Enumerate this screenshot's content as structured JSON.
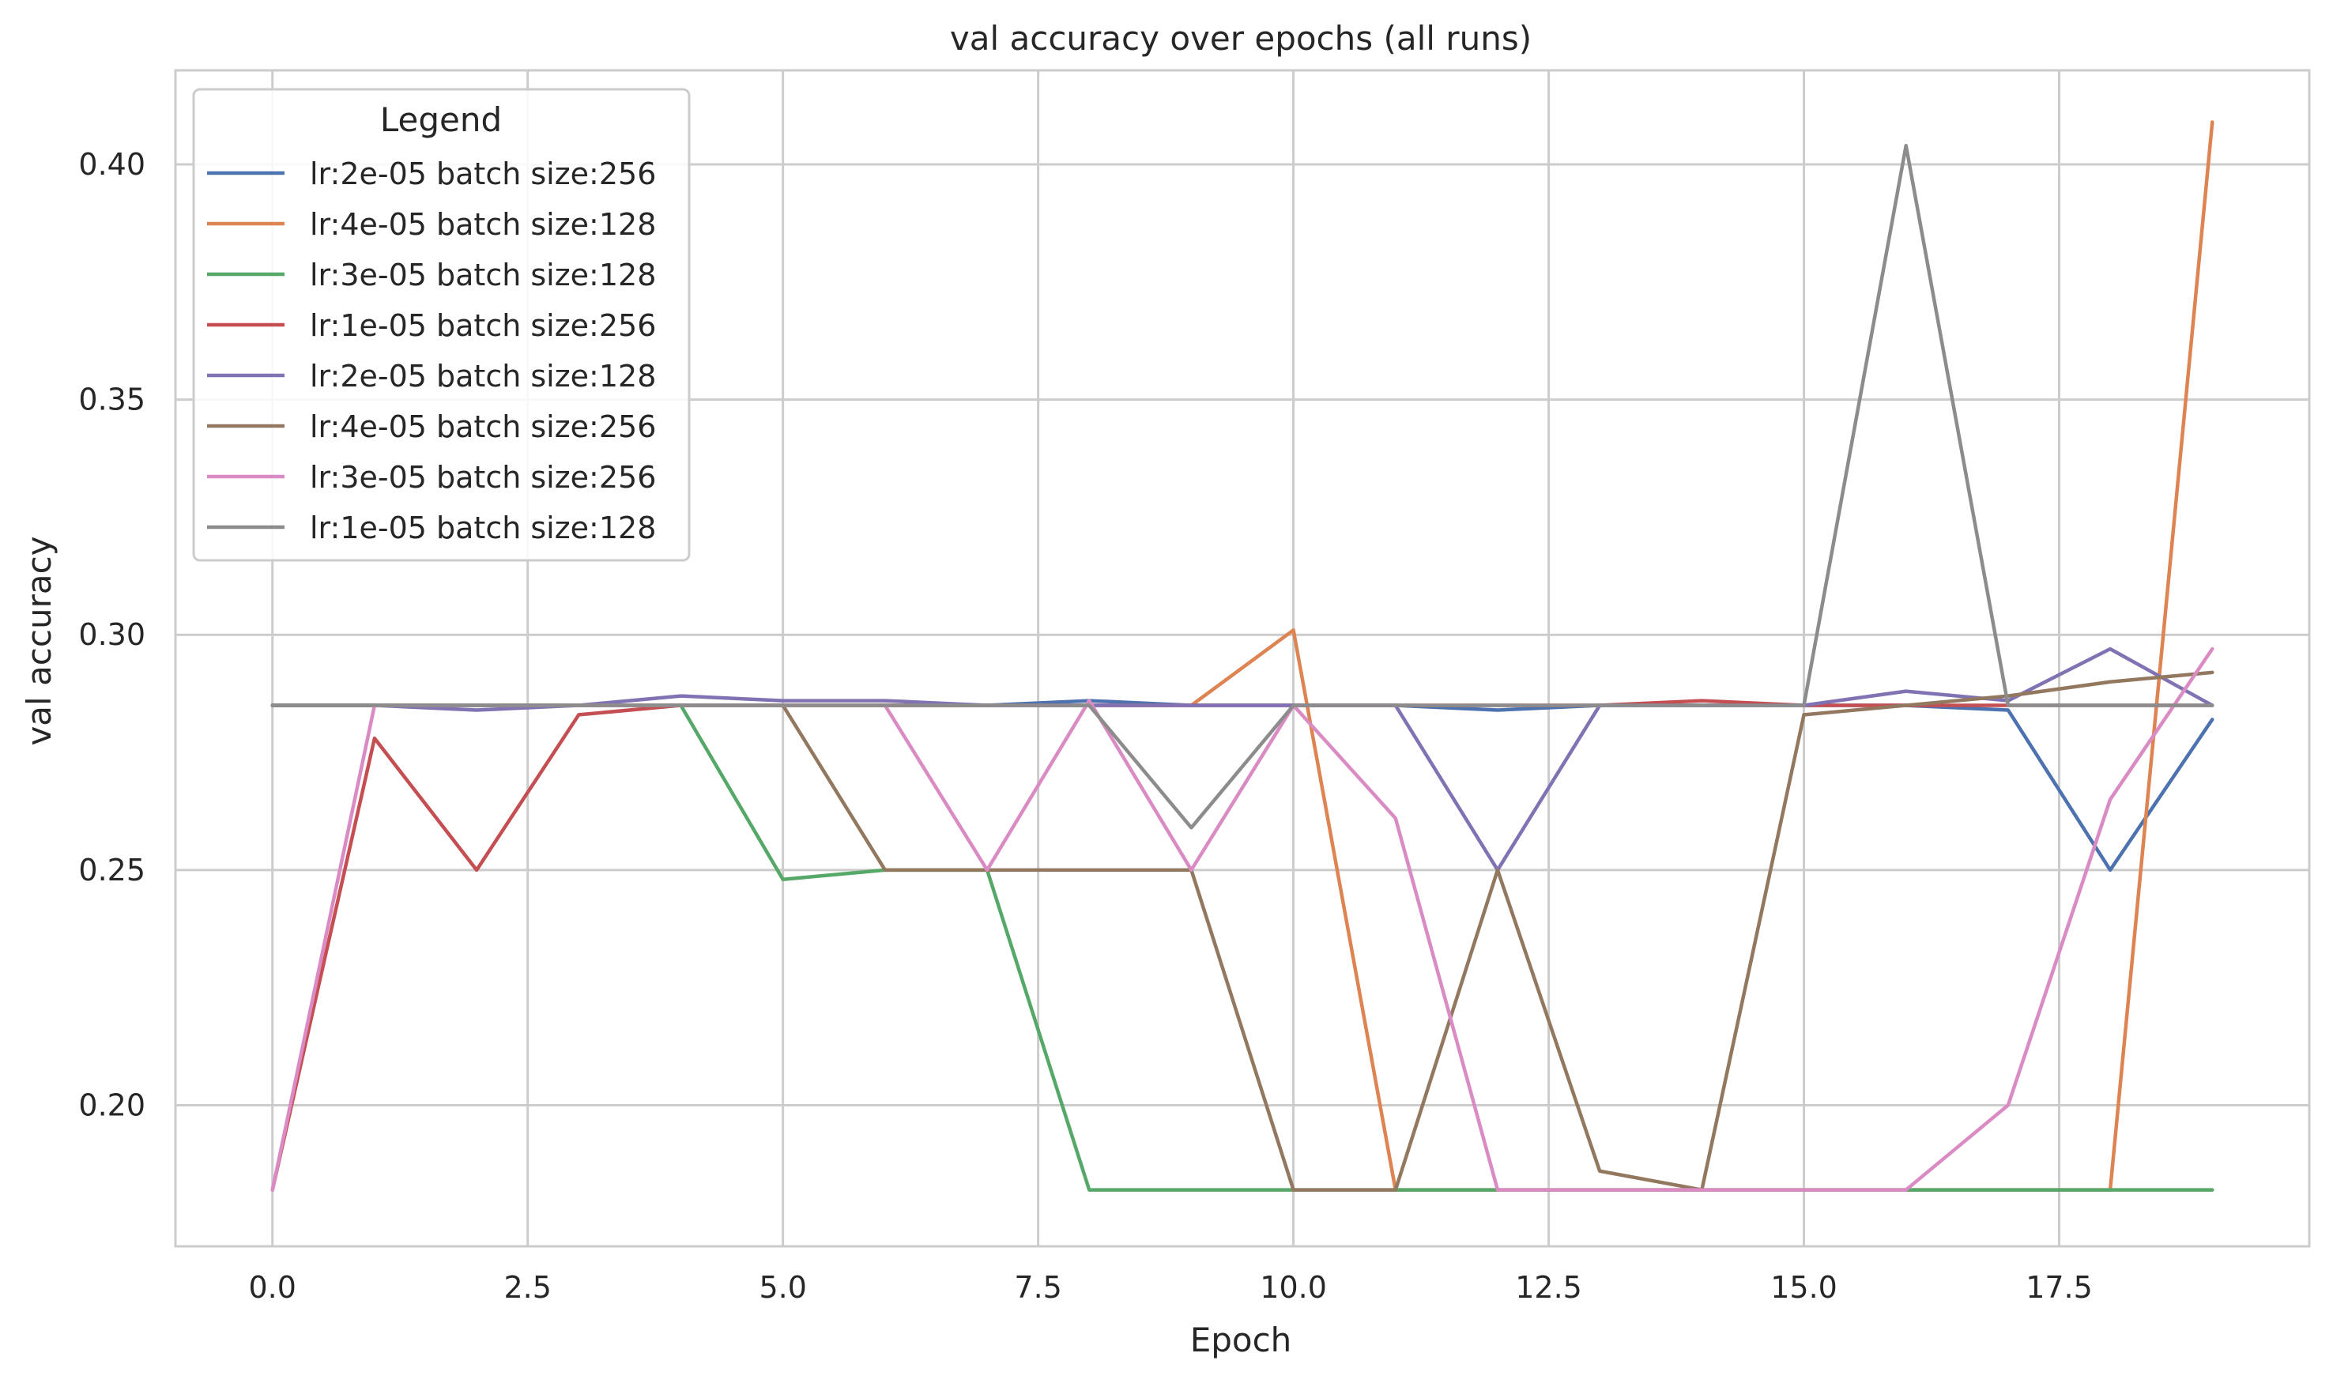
{
  "chart_data": {
    "type": "line",
    "title": "val accuracy over epochs (all runs)",
    "xlabel": "Epoch",
    "ylabel": "val accuracy",
    "xlim": [
      -0.95,
      19.95
    ],
    "ylim": [
      0.17,
      0.42
    ],
    "xticks": [
      0,
      2.5,
      5,
      7.5,
      10,
      12.5,
      15,
      17.5
    ],
    "xtick_labels": [
      "0.0",
      "2.5",
      "5.0",
      "7.5",
      "10.0",
      "12.5",
      "15.0",
      "17.5"
    ],
    "yticks": [
      0.2,
      0.25,
      0.3,
      0.35,
      0.4
    ],
    "ytick_labels": [
      "0.20",
      "0.25",
      "0.30",
      "0.35",
      "0.40"
    ],
    "grid": true,
    "legend": {
      "title": "Legend",
      "placement": "top-left"
    },
    "x": [
      0,
      1,
      2,
      3,
      4,
      5,
      6,
      7,
      8,
      9,
      10,
      11,
      12,
      13,
      14,
      15,
      16,
      17,
      18,
      19
    ],
    "series": [
      {
        "name": "lr:2e-05 batch size:256",
        "color": "#4c72b0",
        "values": [
          0.285,
          0.285,
          0.285,
          0.285,
          0.285,
          0.285,
          0.285,
          0.285,
          0.286,
          0.285,
          0.285,
          0.285,
          0.284,
          0.285,
          0.285,
          0.285,
          0.285,
          0.284,
          0.25,
          0.282
        ]
      },
      {
        "name": "lr:4e-05 batch size:128",
        "color": "#dd8452",
        "values": [
          0.285,
          0.285,
          0.285,
          0.285,
          0.285,
          0.285,
          0.285,
          0.285,
          0.285,
          0.285,
          0.301,
          0.182,
          0.182,
          0.182,
          0.182,
          0.182,
          0.182,
          0.182,
          0.182,
          0.409
        ]
      },
      {
        "name": "lr:3e-05 batch size:128",
        "color": "#55a868",
        "values": [
          0.285,
          0.285,
          0.285,
          0.285,
          0.285,
          0.248,
          0.25,
          0.25,
          0.182,
          0.182,
          0.182,
          0.182,
          0.182,
          0.182,
          0.182,
          0.182,
          0.182,
          0.182,
          0.182,
          0.182
        ]
      },
      {
        "name": "lr:1e-05 batch size:256",
        "color": "#c44e52",
        "values": [
          0.182,
          0.278,
          0.25,
          0.283,
          0.285,
          0.285,
          0.285,
          0.285,
          0.285,
          0.285,
          0.285,
          0.285,
          0.285,
          0.285,
          0.286,
          0.285,
          0.285,
          0.285,
          0.285,
          0.285
        ]
      },
      {
        "name": "lr:2e-05 batch size:128",
        "color": "#8172b3",
        "values": [
          0.285,
          0.285,
          0.284,
          0.285,
          0.287,
          0.286,
          0.286,
          0.285,
          0.285,
          0.285,
          0.285,
          0.285,
          0.25,
          0.285,
          0.285,
          0.285,
          0.288,
          0.286,
          0.297,
          0.285
        ]
      },
      {
        "name": "lr:4e-05 batch size:256",
        "color": "#937860",
        "values": [
          0.285,
          0.285,
          0.285,
          0.285,
          0.285,
          0.285,
          0.25,
          0.25,
          0.25,
          0.25,
          0.182,
          0.182,
          0.25,
          0.186,
          0.182,
          0.283,
          0.285,
          0.287,
          0.29,
          0.292
        ]
      },
      {
        "name": "lr:3e-05 batch size:256",
        "color": "#da8bc3",
        "values": [
          0.182,
          0.285,
          0.285,
          0.285,
          0.285,
          0.285,
          0.285,
          0.25,
          0.286,
          0.25,
          0.285,
          0.261,
          0.182,
          0.182,
          0.182,
          0.182,
          0.182,
          0.2,
          0.265,
          0.297
        ]
      },
      {
        "name": "lr:1e-05 batch size:128",
        "color": "#8c8c8c",
        "values": [
          0.285,
          0.285,
          0.285,
          0.285,
          0.285,
          0.285,
          0.285,
          0.285,
          0.285,
          0.259,
          0.285,
          0.285,
          0.285,
          0.285,
          0.285,
          0.285,
          0.404,
          0.285,
          0.285,
          0.285
        ]
      }
    ]
  }
}
